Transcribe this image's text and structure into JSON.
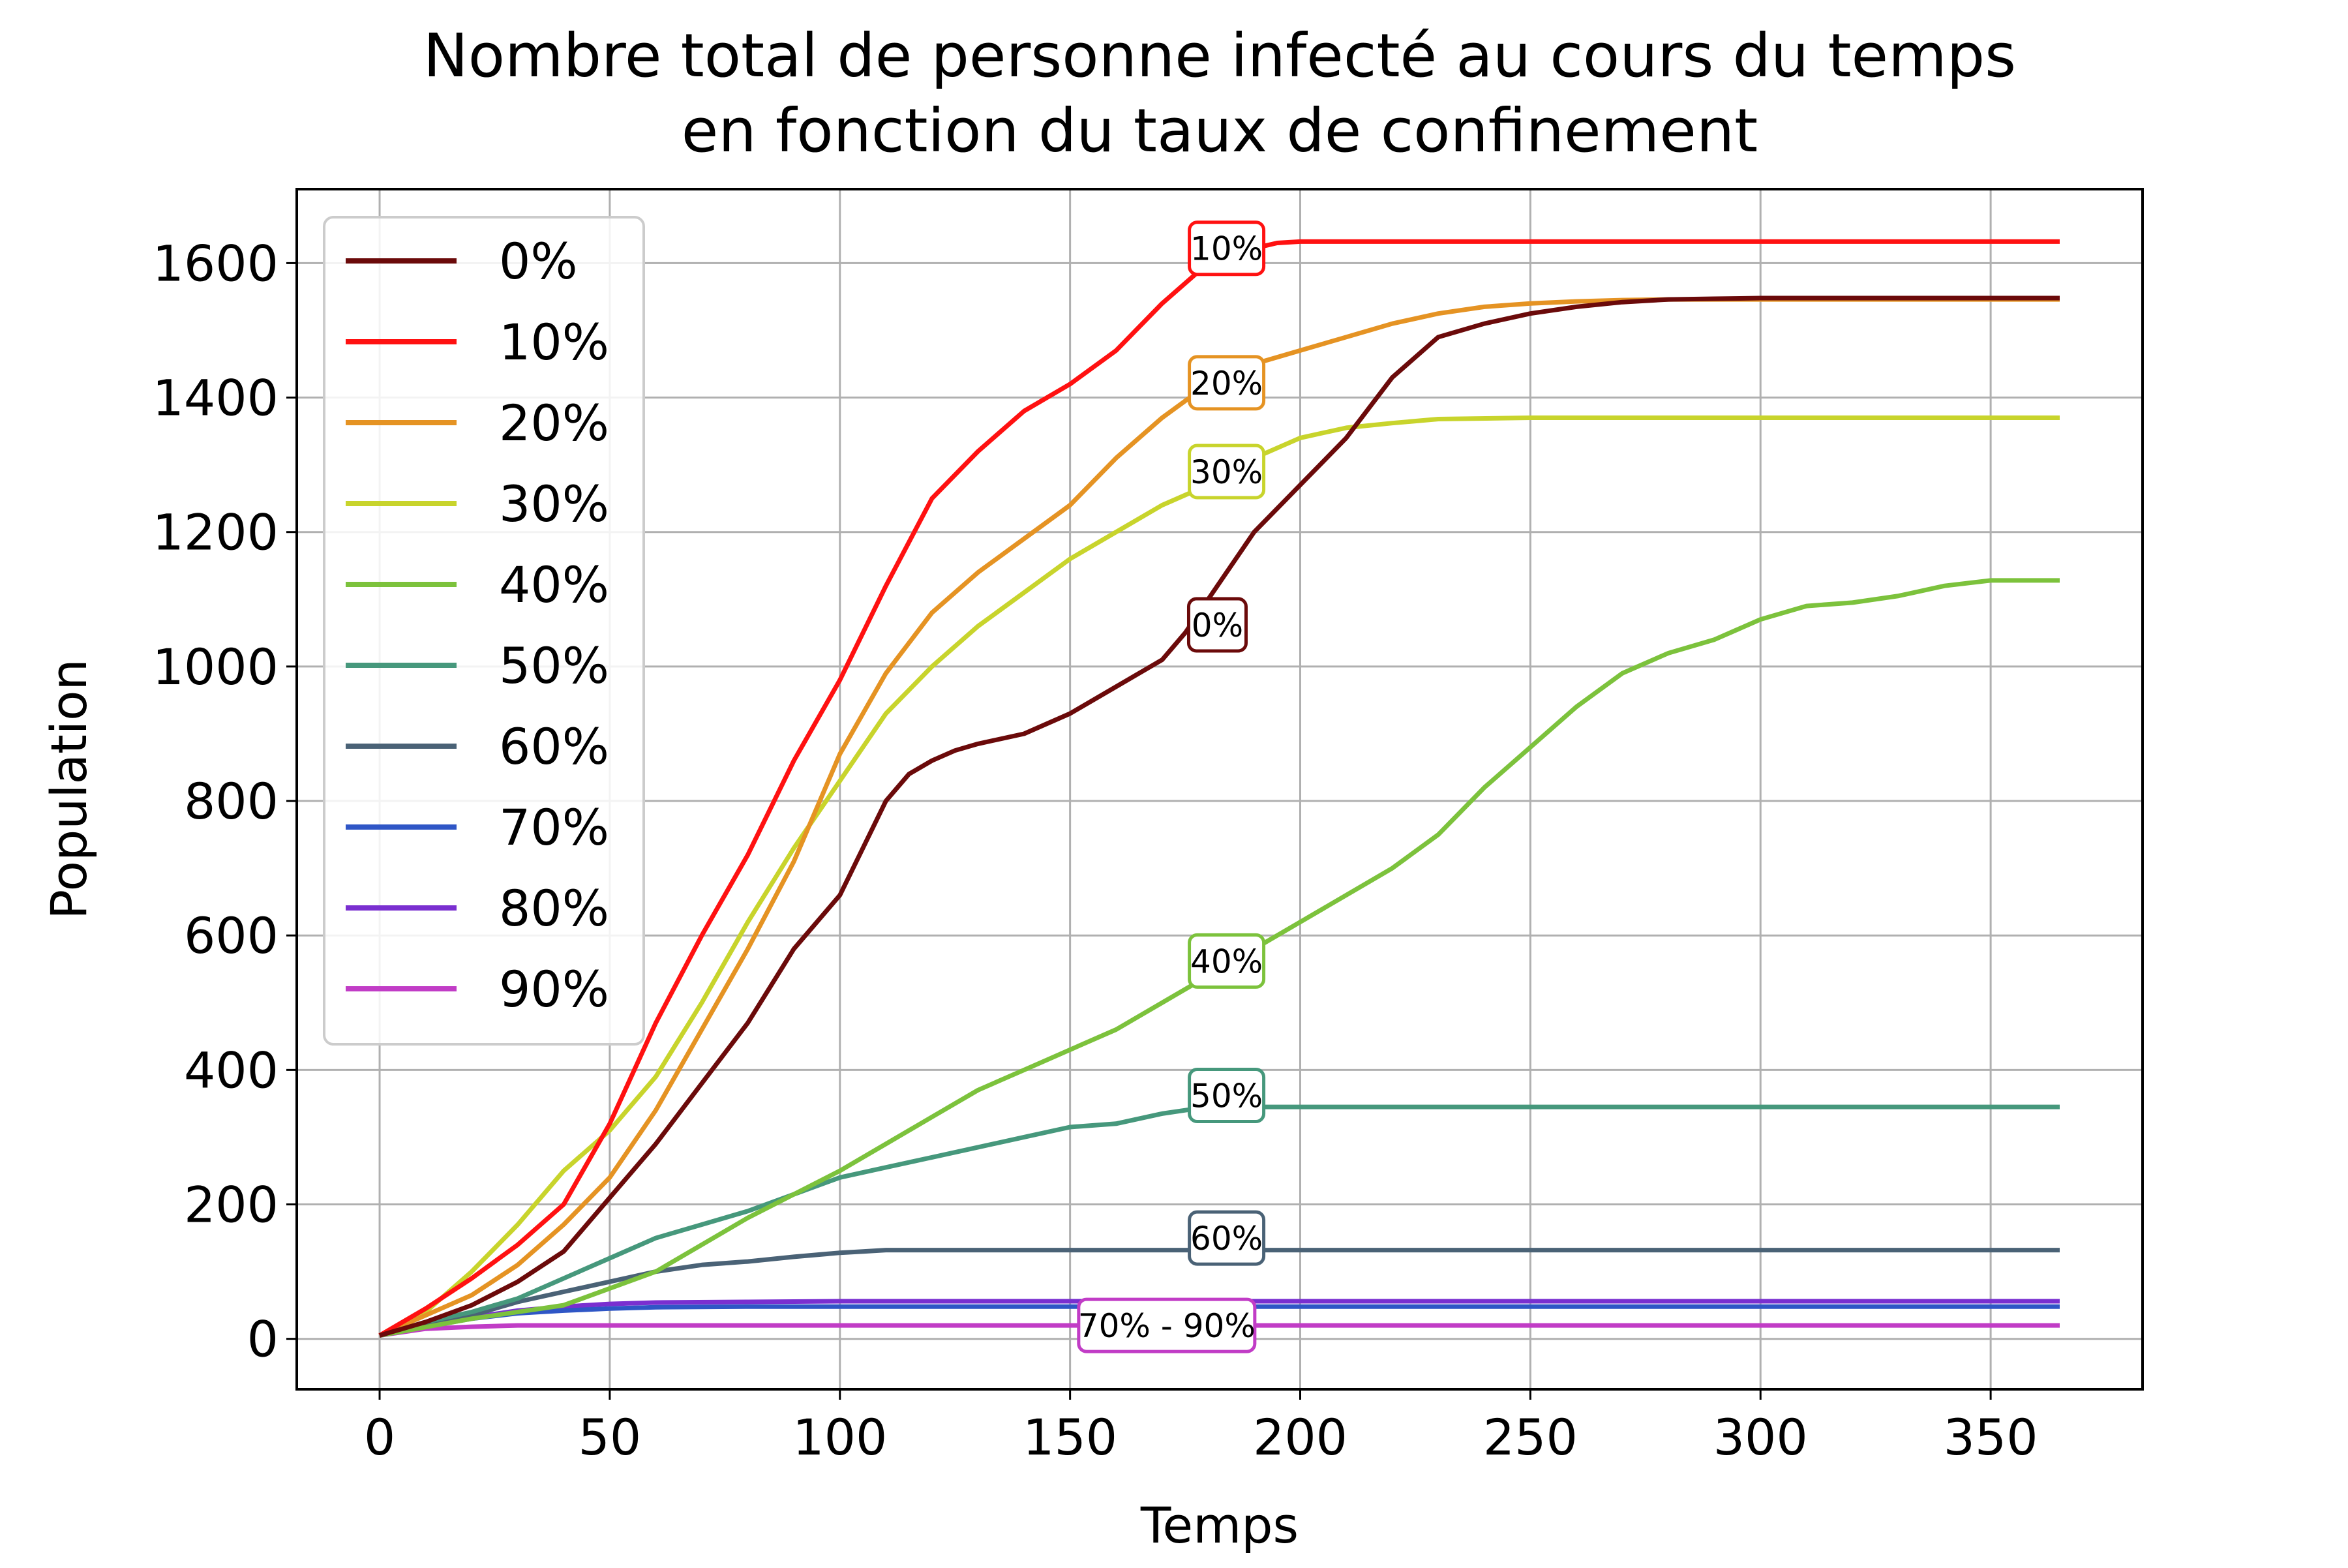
{
  "chart_data": {
    "type": "line",
    "title_lines": [
      "Nombre total de personne infecté au cours du temps",
      "en fonction du taux de confinement"
    ],
    "xlabel": "Temps",
    "ylabel": "Population",
    "xlim": [
      -18,
      383
    ],
    "ylim": [
      -75,
      1710
    ],
    "xticks": [
      0,
      50,
      100,
      150,
      200,
      250,
      300,
      350
    ],
    "yticks": [
      0,
      200,
      400,
      600,
      800,
      1000,
      1200,
      1400,
      1600
    ],
    "grid": true,
    "legend_position": "top-left",
    "series": [
      {
        "name": "0%",
        "color": "#6b0a0a",
        "x": [
          0,
          10,
          20,
          30,
          40,
          50,
          60,
          70,
          80,
          90,
          100,
          110,
          115,
          120,
          125,
          130,
          140,
          150,
          160,
          170,
          175,
          180,
          190,
          200,
          210,
          220,
          230,
          240,
          250,
          260,
          270,
          280,
          290,
          300,
          320,
          340,
          365
        ],
        "y": [
          5,
          25,
          50,
          85,
          130,
          210,
          290,
          380,
          470,
          580,
          660,
          800,
          840,
          860,
          875,
          885,
          900,
          930,
          970,
          1010,
          1050,
          1100,
          1200,
          1270,
          1340,
          1430,
          1490,
          1510,
          1525,
          1535,
          1542,
          1546,
          1547,
          1548,
          1548,
          1548,
          1548
        ]
      },
      {
        "name": "10%",
        "color": "#ff1111",
        "x": [
          0,
          10,
          20,
          30,
          40,
          50,
          60,
          70,
          80,
          90,
          100,
          110,
          120,
          130,
          140,
          150,
          160,
          170,
          180,
          190,
          195,
          200,
          210,
          250,
          300,
          365
        ],
        "y": [
          5,
          45,
          90,
          140,
          200,
          320,
          470,
          600,
          720,
          860,
          980,
          1120,
          1250,
          1320,
          1380,
          1420,
          1470,
          1540,
          1600,
          1622,
          1630,
          1632,
          1632,
          1632,
          1632,
          1632
        ]
      },
      {
        "name": "20%",
        "color": "#e59323",
        "x": [
          0,
          10,
          20,
          30,
          40,
          50,
          60,
          70,
          80,
          90,
          100,
          110,
          120,
          130,
          140,
          150,
          160,
          170,
          180,
          190,
          200,
          210,
          220,
          230,
          240,
          250,
          260,
          270,
          280,
          300,
          365
        ],
        "y": [
          5,
          35,
          65,
          110,
          170,
          240,
          340,
          460,
          580,
          710,
          870,
          990,
          1080,
          1140,
          1190,
          1240,
          1310,
          1370,
          1420,
          1450,
          1470,
          1490,
          1510,
          1525,
          1535,
          1540,
          1543,
          1545,
          1546,
          1546,
          1546
        ]
      },
      {
        "name": "30%",
        "color": "#c8d42c",
        "x": [
          0,
          10,
          20,
          30,
          40,
          50,
          60,
          70,
          80,
          90,
          100,
          110,
          120,
          130,
          140,
          150,
          160,
          170,
          180,
          190,
          200,
          210,
          220,
          230,
          250,
          300,
          365
        ],
        "y": [
          5,
          40,
          100,
          170,
          250,
          310,
          390,
          500,
          620,
          730,
          830,
          930,
          1000,
          1060,
          1110,
          1160,
          1200,
          1240,
          1270,
          1310,
          1340,
          1355,
          1362,
          1368,
          1370,
          1370,
          1370
        ]
      },
      {
        "name": "40%",
        "color": "#7cc23c",
        "x": [
          0,
          20,
          40,
          60,
          80,
          100,
          110,
          120,
          130,
          140,
          150,
          160,
          170,
          180,
          190,
          200,
          210,
          220,
          230,
          240,
          250,
          260,
          270,
          280,
          290,
          300,
          310,
          320,
          330,
          340,
          350,
          365
        ],
        "y": [
          5,
          30,
          50,
          100,
          180,
          250,
          290,
          330,
          370,
          400,
          430,
          460,
          500,
          540,
          580,
          620,
          660,
          700,
          750,
          820,
          880,
          940,
          990,
          1020,
          1040,
          1070,
          1090,
          1095,
          1105,
          1120,
          1128,
          1128
        ]
      },
      {
        "name": "50%",
        "color": "#46987c",
        "x": [
          0,
          10,
          20,
          30,
          40,
          50,
          60,
          70,
          80,
          90,
          100,
          110,
          120,
          130,
          140,
          150,
          160,
          170,
          175,
          180,
          200,
          250,
          365
        ],
        "y": [
          5,
          25,
          40,
          60,
          90,
          120,
          150,
          170,
          190,
          215,
          240,
          255,
          270,
          285,
          300,
          315,
          320,
          335,
          340,
          345,
          345,
          345,
          345
        ]
      },
      {
        "name": "60%",
        "color": "#4a6276",
        "x": [
          0,
          10,
          20,
          30,
          40,
          50,
          60,
          70,
          80,
          90,
          100,
          105,
          110,
          150,
          200,
          365
        ],
        "y": [
          5,
          20,
          35,
          55,
          70,
          85,
          100,
          110,
          115,
          122,
          128,
          130,
          132,
          132,
          132,
          132
        ]
      },
      {
        "name": "70%",
        "color": "#2f56c6",
        "x": [
          0,
          10,
          20,
          30,
          40,
          50,
          60,
          80,
          365
        ],
        "y": [
          5,
          18,
          30,
          38,
          42,
          45,
          47,
          48,
          48
        ]
      },
      {
        "name": "80%",
        "color": "#7a2fd0",
        "x": [
          0,
          10,
          20,
          30,
          40,
          50,
          60,
          80,
          100,
          365
        ],
        "y": [
          5,
          20,
          32,
          42,
          48,
          52,
          54,
          55,
          56,
          56
        ]
      },
      {
        "name": "90%",
        "color": "#c13cc6",
        "x": [
          0,
          10,
          20,
          30,
          40,
          365
        ],
        "y": [
          5,
          15,
          18,
          20,
          20,
          20
        ]
      }
    ],
    "annotations": [
      {
        "text": "10%",
        "x": 184,
        "y": 1622,
        "color": "#ff1111"
      },
      {
        "text": "20%",
        "x": 184,
        "y": 1422,
        "color": "#e59323"
      },
      {
        "text": "30%",
        "x": 184,
        "y": 1290,
        "color": "#c8d42c"
      },
      {
        "text": "0%",
        "x": 182,
        "y": 1062,
        "color": "#6b0a0a"
      },
      {
        "text": "40%",
        "x": 184,
        "y": 562,
        "color": "#7cc23c"
      },
      {
        "text": "50%",
        "x": 184,
        "y": 362,
        "color": "#46987c"
      },
      {
        "text": "60%",
        "x": 184,
        "y": 150,
        "color": "#4a6276"
      },
      {
        "text": "70% - 90%",
        "x": 171,
        "y": 20,
        "color": "#c13cc6"
      }
    ]
  }
}
